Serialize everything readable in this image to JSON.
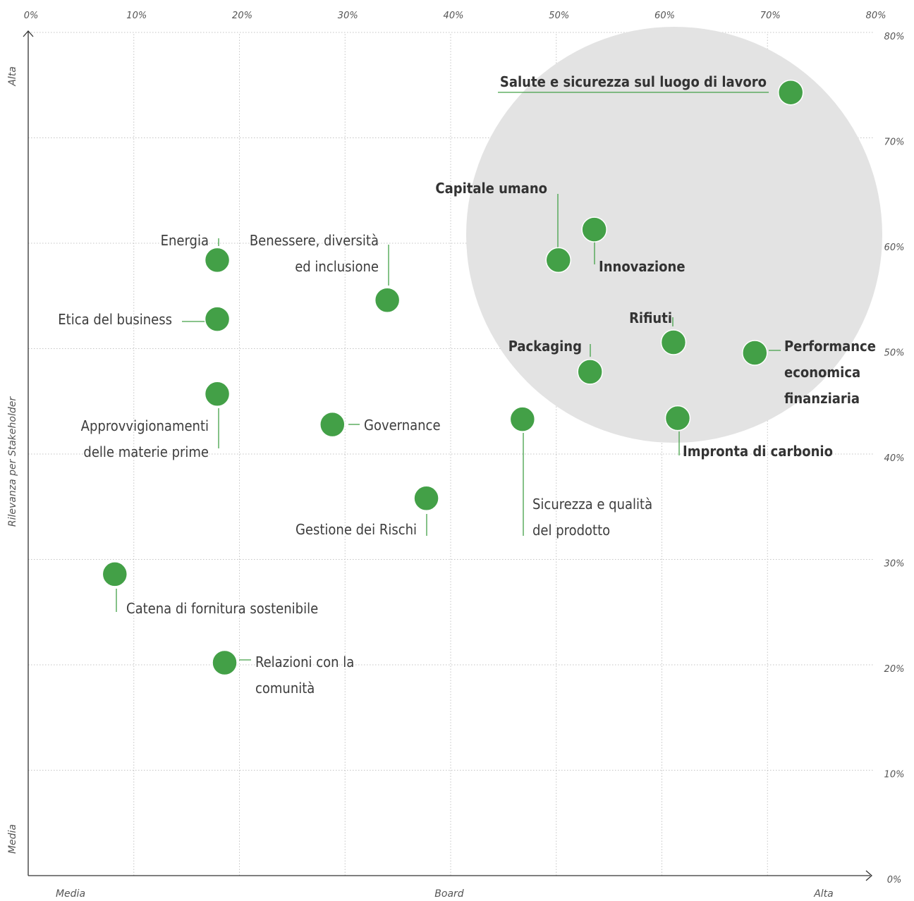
{
  "chart_data": {
    "type": "scatter",
    "title": "",
    "xlim": [
      0,
      80
    ],
    "ylim": [
      0,
      80
    ],
    "x_ticks": [
      "0%",
      "10%",
      "20%",
      "30%",
      "40%",
      "50%",
      "60%",
      "70%",
      "80%"
    ],
    "y_ticks": [
      "0%",
      "10%",
      "20%",
      "30%",
      "40%",
      "50%",
      "60%",
      "70%",
      "80%"
    ],
    "x_axis_words": {
      "low": "Media",
      "mid": "Board",
      "high": "Alta"
    },
    "y_axis_words": {
      "low": "Media",
      "mid": "Rilevanza per Stakeholder",
      "high": "Alta"
    },
    "grid": true,
    "highlight_color": "#e3e3e3",
    "point_color": "#43a047",
    "points": [
      {
        "label": [
          "Salute e sicurezza sul luogo di lavoro"
        ],
        "x": 72.2,
        "y": 74.3,
        "bold": true
      },
      {
        "label": [
          "Capitale umano"
        ],
        "x": 50.2,
        "y": 58.4,
        "bold": true
      },
      {
        "label": [
          "Innovazione"
        ],
        "x": 53.6,
        "y": 61.3,
        "bold": true
      },
      {
        "label": [
          "Rifiuti"
        ],
        "x": 61.1,
        "y": 50.6,
        "bold": true
      },
      {
        "label": [
          "Packaging"
        ],
        "x": 53.2,
        "y": 47.8,
        "bold": true
      },
      {
        "label": [
          "Performance",
          "economica",
          "finanziaria"
        ],
        "x": 68.8,
        "y": 49.6,
        "bold": true
      },
      {
        "label": [
          "Impronta di carbonio"
        ],
        "x": 61.5,
        "y": 43.4,
        "bold": true
      },
      {
        "label": [
          "Energia"
        ],
        "x": 17.9,
        "y": 58.4,
        "bold": false
      },
      {
        "label": [
          "Benessere, diversità",
          "ed inclusione"
        ],
        "x": 34.0,
        "y": 54.6,
        "bold": false
      },
      {
        "label": [
          "Etica del business"
        ],
        "x": 17.9,
        "y": 52.8,
        "bold": false
      },
      {
        "label": [
          "Approvvigionamenti",
          "delle materie prime"
        ],
        "x": 17.9,
        "y": 45.7,
        "bold": false
      },
      {
        "label": [
          "Governance"
        ],
        "x": 28.8,
        "y": 42.8,
        "bold": false
      },
      {
        "label": [
          "Sicurezza e qualità",
          "del prodotto"
        ],
        "x": 46.8,
        "y": 43.3,
        "bold": false
      },
      {
        "label": [
          "Gestione dei Rischi"
        ],
        "x": 37.7,
        "y": 35.8,
        "bold": false
      },
      {
        "label": [
          "Catena di fornitura sostenibile"
        ],
        "x": 8.2,
        "y": 28.6,
        "bold": false
      },
      {
        "label": [
          "Relazioni con la",
          "comunità"
        ],
        "x": 18.6,
        "y": 20.2,
        "bold": false
      }
    ]
  }
}
